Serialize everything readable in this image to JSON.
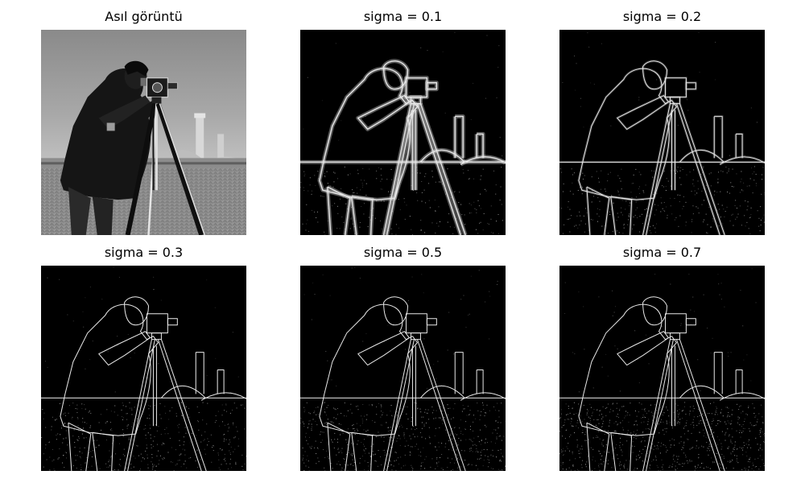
{
  "figure": {
    "panels": [
      {
        "title": "Asıl görüntü",
        "kind": "original"
      },
      {
        "title": "sigma = 0.1",
        "kind": "edges",
        "sigma": 0.1
      },
      {
        "title": "sigma = 0.2",
        "kind": "edges",
        "sigma": 0.2
      },
      {
        "title": "sigma = 0.3",
        "kind": "edges",
        "sigma": 0.3
      },
      {
        "title": "sigma = 0.5",
        "kind": "edges",
        "sigma": 0.5
      },
      {
        "title": "sigma = 0.7",
        "kind": "edges",
        "sigma": 0.7
      }
    ]
  }
}
